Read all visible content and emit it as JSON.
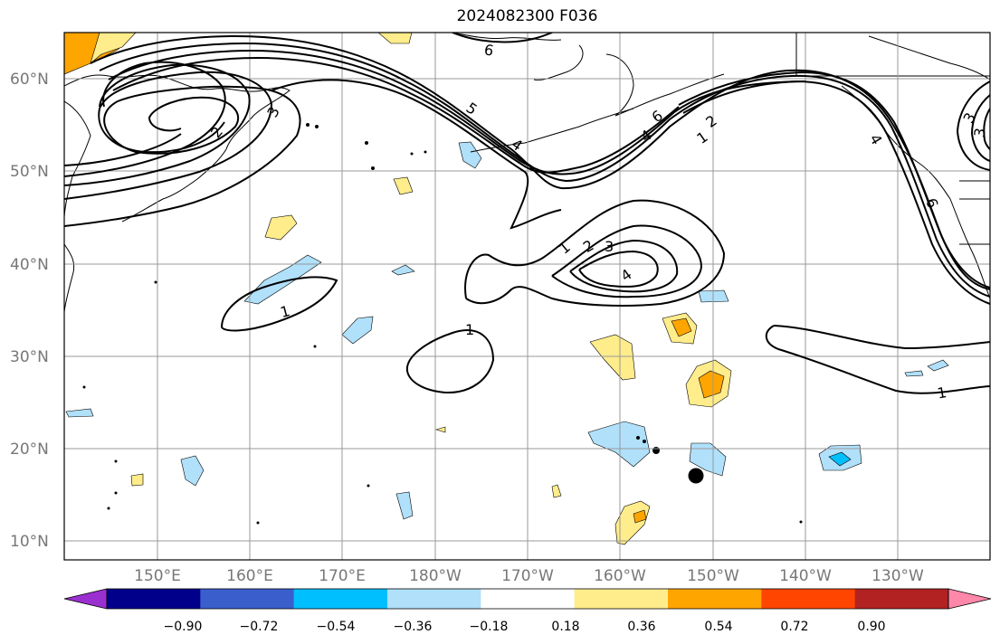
{
  "title": "2024082300 F036",
  "lat_labels": [
    "60°N",
    "50°N",
    "40°N",
    "30°N",
    "20°N",
    "10°N"
  ],
  "lon_labels": [
    "150°E",
    "160°E",
    "170°E",
    "180°W",
    "170°W",
    "160°W",
    "150°W",
    "140°W",
    "130°W"
  ],
  "colorbar": {
    "ticks": [
      "−0.90",
      "−0.72",
      "−0.54",
      "−0.36",
      "−0.18",
      "0.18",
      "0.36",
      "0.54",
      "0.72",
      "0.90"
    ],
    "colors": [
      "#9b30d0",
      "#00008b",
      "#3a5fcd",
      "#00bfff",
      "#b0e0fa",
      "#ffffff",
      "#ffec8b",
      "#ffa500",
      "#ff4500",
      "#b22222",
      "#ff88aa"
    ]
  },
  "contour_labels": [
    "6",
    "5",
    "4",
    "3",
    "2",
    "1",
    "6",
    "4",
    "2",
    "1",
    "1",
    "2",
    "3",
    "4",
    "1",
    "1",
    "1",
    "6",
    "4",
    "3",
    "3"
  ],
  "marker": "storm-center-dot"
}
